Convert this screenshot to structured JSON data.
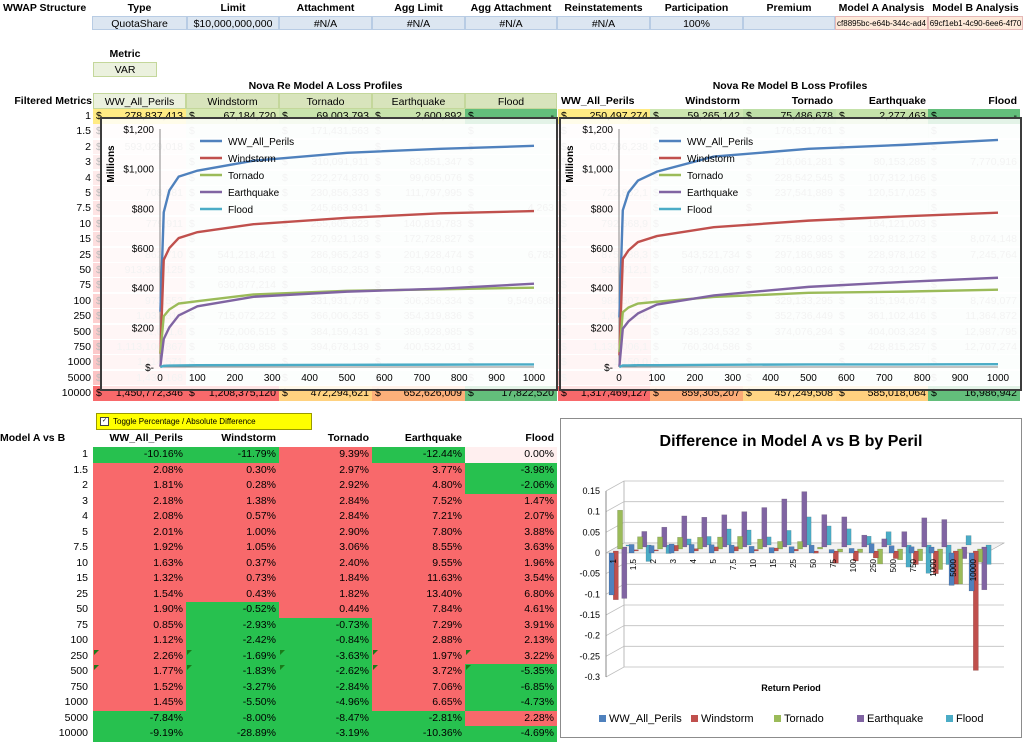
{
  "structure": {
    "row_label": "WWAP Structure",
    "headers": [
      "Type",
      "Limit",
      "Attachment",
      "Agg Limit",
      "Agg Attachment",
      "Reinstatements",
      "Participation",
      "Premium",
      "Model A Analysis",
      "Model B Analysis"
    ],
    "values": [
      "QuotaShare",
      "$10,000,000,000",
      "#N/A",
      "#N/A",
      "#N/A",
      "#N/A",
      "100%",
      "",
      "cf8895bc-e64b-344c-ad4",
      "69cf1eb1-4c90-6ee6-4f70"
    ]
  },
  "metric": {
    "label": "Metric",
    "value": "VAR"
  },
  "filtered_metrics_label": "Filtered Metrics",
  "return_periods": [
    "1",
    "1.5",
    "2",
    "3",
    "4",
    "5",
    "7.5",
    "10",
    "15",
    "25",
    "50",
    "75",
    "100",
    "250",
    "500",
    "750",
    "1000",
    "5000",
    "10000"
  ],
  "model_a": {
    "title": "Nova Re Model A Loss Profiles",
    "columns": [
      "WW_All_Perils",
      "Windstorm",
      "Tornado",
      "Earthquake",
      "Flood"
    ],
    "row1": [
      "278,837,413",
      "67,184,720",
      "69,003,793",
      "2,600,892",
      "-"
    ],
    "row10000": [
      "1,450,772,346",
      "1,208,375,120",
      "472,294,621",
      "652,626,009",
      "17,822,520"
    ]
  },
  "model_b": {
    "title": "Nova Re Model B Loss Profiles",
    "columns": [
      "WW_All_Perils",
      "Windstorm",
      "Tornado",
      "Earthquake",
      "Flood"
    ],
    "row1": [
      "250,497,274",
      "59,265,142",
      "75,486,678",
      "2,277,463",
      "-"
    ],
    "row10000": [
      "1,317,469,127",
      "859,305,207",
      "457,249,508",
      "585,018,064",
      "16,986,942"
    ]
  },
  "dollar": "$",
  "faint_rows_a": [
    [
      "",
      "",
      "171,431,563",
      "",
      ""
    ],
    [
      "593,029,018",
      "",
      "",
      "",
      ""
    ],
    [
      "",
      "",
      "310,091,911",
      "83,851,347",
      ""
    ],
    [
      "",
      "",
      "222,274,870",
      "99,605,076",
      ""
    ],
    [
      "708,581",
      "",
      "230,856,333",
      "111,797,995",
      ""
    ],
    [
      "",
      "",
      "245,663,931",
      "",
      "4,263"
    ],
    [
      "779,911",
      "",
      "255,605,823",
      "140,819,783",
      ""
    ],
    [
      "",
      "",
      "270,921,139",
      "172,728,827",
      ""
    ],
    [
      "862,710",
      "541,218,421",
      "286,965,243",
      "201,928,474",
      "6,785"
    ],
    [
      "913,386,125",
      "590,834,568",
      "308,582,353",
      "253,459,019",
      ""
    ],
    [
      "",
      "630,877,214",
      "",
      "",
      ""
    ],
    [
      "973,553",
      "",
      "331,931,779",
      "306,356,334",
      "9,549,688"
    ],
    [
      "1,037,810",
      "715,072,222",
      "366,006,355",
      "354,319,836",
      ""
    ],
    [
      "1,051,6",
      "752,006,515",
      "384,159,431",
      "389,928,985",
      ""
    ],
    [
      "1,113,106,867",
      "786,039,858",
      "394,678,139",
      "400,532,031",
      ""
    ],
    [
      "1,114,571",
      "",
      "",
      "",
      ""
    ],
    [
      "1,431,168",
      "",
      "",
      "",
      ""
    ]
  ],
  "faint_rows_b": [
    [
      "",
      "",
      "176,531,761",
      "",
      ""
    ],
    [
      "603,786,238",
      "",
      "",
      "",
      ""
    ],
    [
      "",
      "",
      "216,061,281",
      "80,153,285",
      "7,770,916"
    ],
    [
      "",
      "",
      "228,542,545",
      "107,312,166",
      ""
    ],
    [
      "722,852,1",
      "",
      "237,541,889",
      "120,517,025",
      ""
    ],
    [
      "",
      "",
      "",
      "",
      ""
    ],
    [
      "792,668,9",
      "",
      "",
      "164,121,003",
      ""
    ],
    [
      "",
      "",
      "275,892,993",
      "192,812,273",
      "8,074,148"
    ],
    [
      "875,988,3",
      "543,521,734",
      "297,186,985",
      "228,978,162",
      "7,245,764"
    ],
    [
      "930,712,1",
      "587,789,687",
      "309,930,026",
      "273,321,229",
      ""
    ],
    [
      "",
      "",
      "",
      "",
      ""
    ],
    [
      "984,507,3",
      "",
      "329,133,295",
      "315,194,674",
      "8,749,077"
    ],
    [
      "1,061,256",
      "",
      "352,736,449",
      "361,102,416",
      "11,364,872"
    ],
    [
      "",
      "738,233,532",
      "374,076,294",
      "404,003,324",
      "12,987,795"
    ],
    [
      "1,130,006,1",
      "760,304,586",
      "",
      "428,815,257",
      "12,707,274"
    ],
    [
      "1,150,0",
      "",
      "",
      "",
      ""
    ],
    [
      "",
      "",
      "",
      "",
      ""
    ]
  ],
  "chart_a": {
    "type": "line",
    "ylabel": "Millions",
    "yticks": [
      "$-",
      "$200",
      "$400",
      "$600",
      "$800",
      "$1,000",
      "$1,200"
    ],
    "xticks": [
      "0",
      "100",
      "200",
      "300",
      "400",
      "500",
      "600",
      "700",
      "800",
      "900",
      "1000"
    ],
    "legend": [
      "WW_All_Perils",
      "Windstorm",
      "Tornado",
      "Earthquake",
      "Flood"
    ],
    "colors": [
      "#4f81bd",
      "#c0504d",
      "#9bbb59",
      "#8064a2",
      "#4bacc6"
    ],
    "ylim": [
      0,
      1200
    ],
    "xlim": [
      0,
      1000
    ],
    "x": [
      1,
      10,
      25,
      50,
      100,
      250,
      500,
      750,
      1000
    ],
    "series": [
      {
        "name": "WW_All_Perils",
        "values": [
          279,
          780,
          890,
          960,
          990,
          1040,
          1080,
          1100,
          1115
        ]
      },
      {
        "name": "Windstorm",
        "values": [
          67,
          540,
          600,
          650,
          680,
          720,
          752,
          775,
          786
        ]
      },
      {
        "name": "Tornado",
        "values": [
          69,
          256,
          290,
          320,
          332,
          366,
          384,
          392,
          400
        ]
      },
      {
        "name": "Earthquake",
        "values": [
          3,
          141,
          200,
          260,
          306,
          354,
          380,
          395,
          420
        ]
      },
      {
        "name": "Flood",
        "values": [
          0,
          6,
          7,
          8,
          9,
          10,
          11,
          12,
          13
        ]
      }
    ]
  },
  "chart_b": {
    "type": "line",
    "ylabel": "Millions",
    "yticks": [
      "$-",
      "$200",
      "$400",
      "$600",
      "$800",
      "$1,000",
      "$1,200"
    ],
    "xticks": [
      "0",
      "100",
      "200",
      "300",
      "400",
      "500",
      "600",
      "700",
      "800",
      "900",
      "1000"
    ],
    "legend": [
      "WW_All_Perils",
      "Windstorm",
      "Tornado",
      "Earthquake",
      "Flood"
    ],
    "colors": [
      "#4f81bd",
      "#c0504d",
      "#9bbb59",
      "#8064a2",
      "#4bacc6"
    ],
    "ylim": [
      0,
      1200
    ],
    "xlim": [
      0,
      1000
    ],
    "x": [
      1,
      10,
      25,
      50,
      100,
      250,
      500,
      750,
      1000
    ],
    "series": [
      {
        "name": "WW_All_Perils",
        "values": [
          250,
          790,
          880,
          940,
          985,
          1061,
          1100,
          1120,
          1145
        ]
      },
      {
        "name": "Windstorm",
        "values": [
          59,
          545,
          588,
          630,
          660,
          705,
          738,
          760,
          778
        ]
      },
      {
        "name": "Tornado",
        "values": [
          75,
          276,
          300,
          320,
          329,
          353,
          374,
          380,
          390
        ]
      },
      {
        "name": "Earthquake",
        "values": [
          2,
          193,
          230,
          270,
          315,
          361,
          404,
          429,
          450
        ]
      },
      {
        "name": "Flood",
        "values": [
          0,
          8,
          8,
          9,
          9,
          11,
          13,
          13,
          14
        ]
      }
    ]
  },
  "toggle_label": "Toggle Percentage / Absolute Difference",
  "diff_table": {
    "corner": "Model A vs B",
    "columns": [
      "WW_All_Perils",
      "Windstorm",
      "Tornado",
      "Earthquake",
      "Flood"
    ],
    "rows": [
      [
        "-10.16%",
        "-11.79%",
        "9.39%",
        "-12.44%",
        "0.00%"
      ],
      [
        "2.08%",
        "0.30%",
        "2.97%",
        "3.77%",
        "-3.98%"
      ],
      [
        "1.81%",
        "0.28%",
        "2.92%",
        "4.80%",
        "-2.06%"
      ],
      [
        "2.18%",
        "1.38%",
        "2.84%",
        "7.52%",
        "1.47%"
      ],
      [
        "2.08%",
        "0.57%",
        "2.84%",
        "7.21%",
        "2.07%"
      ],
      [
        "2.01%",
        "1.00%",
        "2.90%",
        "7.80%",
        "3.88%"
      ],
      [
        "1.92%",
        "1.05%",
        "3.06%",
        "8.55%",
        "3.63%"
      ],
      [
        "1.63%",
        "0.37%",
        "2.40%",
        "9.55%",
        "1.96%"
      ],
      [
        "1.32%",
        "0.73%",
        "1.84%",
        "11.63%",
        "3.54%"
      ],
      [
        "1.54%",
        "0.43%",
        "1.82%",
        "13.40%",
        "6.80%"
      ],
      [
        "1.90%",
        "-0.52%",
        "0.44%",
        "7.84%",
        "4.61%"
      ],
      [
        "0.85%",
        "-2.93%",
        "-0.73%",
        "7.29%",
        "3.91%"
      ],
      [
        "1.12%",
        "-2.42%",
        "-0.84%",
        "2.88%",
        "2.13%"
      ],
      [
        "2.26%",
        "-1.69%",
        "-3.63%",
        "1.97%",
        "3.22%"
      ],
      [
        "1.77%",
        "-1.83%",
        "-2.62%",
        "3.72%",
        "-5.35%"
      ],
      [
        "1.52%",
        "-3.27%",
        "-2.84%",
        "7.06%",
        "-6.85%"
      ],
      [
        "1.45%",
        "-5.50%",
        "-4.96%",
        "6.65%",
        "-4.73%"
      ],
      [
        "-7.84%",
        "-8.00%",
        "-8.47%",
        "-2.81%",
        "2.28%"
      ],
      [
        "-9.19%",
        "-28.89%",
        "-3.19%",
        "-10.36%",
        "-4.69%"
      ]
    ]
  },
  "chart_diff": {
    "type": "bar",
    "title": "Difference in Model A vs B by Peril",
    "xlabel": "Return Period",
    "yticks": [
      "0.15",
      "0.1",
      "0.05",
      "0",
      "-0.05",
      "-0.1",
      "-0.15",
      "-0.2",
      "-0.25",
      "-0.3"
    ],
    "ylim": [
      -0.3,
      0.15
    ],
    "categories": [
      "1",
      "1.5",
      "2",
      "3",
      "4",
      "5",
      "7.5",
      "10",
      "15",
      "25",
      "50",
      "75",
      "100",
      "250",
      "500",
      "750",
      "1000",
      "5000",
      "10000"
    ],
    "legend": [
      "WW_All_Perils",
      "Windstorm",
      "Tornado",
      "Earthquake",
      "Flood"
    ],
    "colors": [
      "#4f81bd",
      "#c0504d",
      "#9bbb59",
      "#8064a2",
      "#4bacc6"
    ],
    "series": [
      {
        "name": "WW_All_Perils",
        "values": [
          -0.1016,
          0.0208,
          0.0181,
          0.0218,
          0.0208,
          0.0201,
          0.0192,
          0.0163,
          0.0132,
          0.0154,
          0.019,
          0.0085,
          0.0112,
          0.0226,
          0.0177,
          0.0152,
          0.0145,
          -0.0784,
          -0.0919
        ]
      },
      {
        "name": "Windstorm",
        "values": [
          -0.1179,
          0.003,
          0.0028,
          0.0138,
          0.0057,
          0.01,
          0.0105,
          0.0037,
          0.0073,
          0.0043,
          -0.0052,
          -0.0293,
          -0.0242,
          -0.0169,
          -0.0183,
          -0.0327,
          -0.055,
          -0.08,
          -0.2889
        ]
      },
      {
        "name": "Tornado",
        "values": [
          0.0939,
          0.0297,
          0.0292,
          0.0284,
          0.0284,
          0.029,
          0.0306,
          0.024,
          0.0184,
          0.0182,
          0.0044,
          -0.0073,
          -0.0084,
          -0.0363,
          -0.0262,
          -0.0284,
          -0.0496,
          -0.0847,
          -0.0319
        ]
      },
      {
        "name": "Earthquake",
        "values": [
          -0.1244,
          0.0377,
          0.048,
          0.0752,
          0.0721,
          0.078,
          0.0855,
          0.0955,
          0.1163,
          0.134,
          0.0784,
          0.0729,
          0.0288,
          0.0197,
          0.0372,
          0.0706,
          0.0665,
          -0.0281,
          -0.1036
        ]
      },
      {
        "name": "Flood",
        "values": [
          0.0,
          -0.0398,
          -0.0206,
          0.0147,
          0.0207,
          0.0388,
          0.0363,
          0.0196,
          0.0354,
          0.068,
          0.0461,
          0.0391,
          0.0213,
          0.0322,
          -0.0535,
          -0.0685,
          -0.0473,
          0.0228,
          -0.0469
        ]
      }
    ]
  }
}
